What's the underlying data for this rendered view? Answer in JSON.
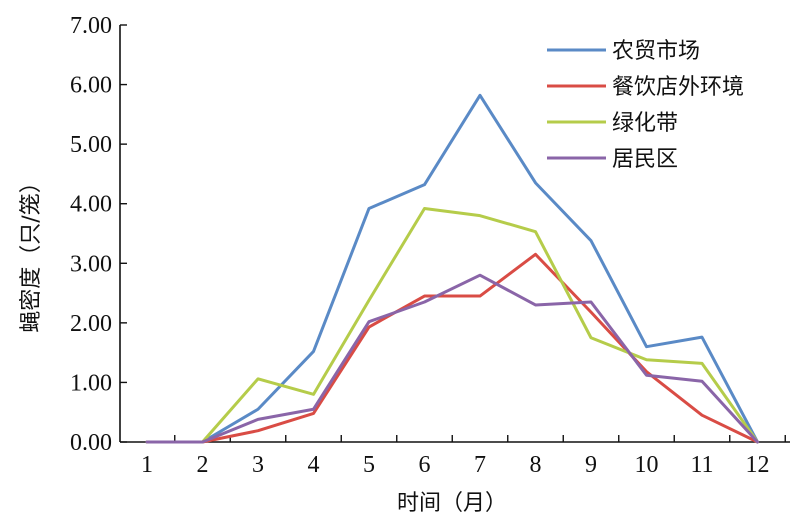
{
  "chart_data": {
    "type": "line",
    "title": "",
    "xlabel": "时间（月）",
    "ylabel": "蝇密度（只/笼）",
    "x": [
      1,
      2,
      3,
      4,
      5,
      6,
      7,
      8,
      9,
      10,
      11,
      12
    ],
    "x_tick_labels": [
      "1",
      "2",
      "3",
      "4",
      "5",
      "6",
      "7",
      "8",
      "9",
      "10",
      "11",
      "12"
    ],
    "y_tick_labels": [
      "0.00",
      "1.00",
      "2.00",
      "3.00",
      "4.00",
      "5.00",
      "6.00",
      "7.00"
    ],
    "ylim": [
      0,
      7
    ],
    "grid": false,
    "legend_position": "top-right",
    "series": [
      {
        "name": "农贸市场",
        "color": "#5a8ac6",
        "values": [
          0,
          0,
          0.55,
          1.52,
          3.92,
          4.32,
          5.82,
          4.35,
          3.38,
          1.6,
          1.76,
          0
        ]
      },
      {
        "name": "餐饮店外环境",
        "color": "#d94c45",
        "values": [
          0,
          0,
          0.19,
          0.48,
          1.93,
          2.45,
          2.45,
          3.15,
          2.18,
          1.18,
          0.45,
          0
        ]
      },
      {
        "name": "绿化带",
        "color": "#b5cc4a",
        "values": [
          0,
          0,
          1.06,
          0.8,
          2.38,
          3.92,
          3.8,
          3.53,
          1.75,
          1.38,
          1.32,
          0
        ]
      },
      {
        "name": "居民区",
        "color": "#8a65a8",
        "values": [
          0,
          0,
          0.38,
          0.55,
          2.02,
          2.35,
          2.8,
          2.3,
          2.35,
          1.12,
          1.02,
          0
        ]
      }
    ]
  }
}
